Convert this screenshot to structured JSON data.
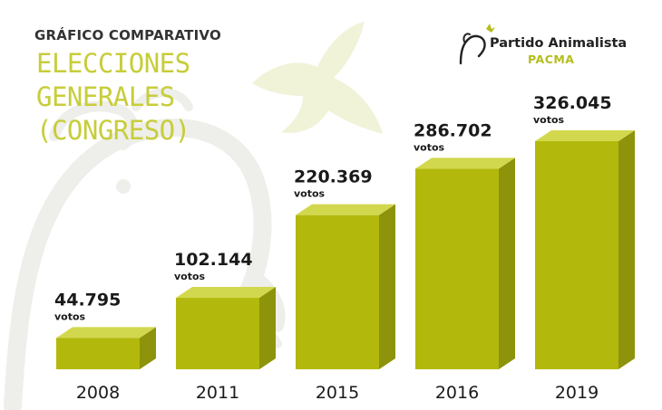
{
  "header": {
    "subtitle": "GRÁFICO COMPARATIVO",
    "title": "ELECCIONES GENERALES (CONGRESO)"
  },
  "logo": {
    "name": "Partido Animalista",
    "sub": "PACMA",
    "accent": "#b5bd1c"
  },
  "chart_data": {
    "type": "bar",
    "categories": [
      "2008",
      "2011",
      "2015",
      "2016",
      "2019"
    ],
    "values": [
      44795,
      102144,
      220369,
      286702,
      326045
    ],
    "value_labels": [
      "44.795",
      "102.144",
      "220.369",
      "286.702",
      "326.045"
    ],
    "unit_label": "votos",
    "title": "ELECCIONES GENERALES (CONGRESO)",
    "bar_colors": {
      "front": "#b2b90c",
      "top": "#d2d84d",
      "side": "#8d930a"
    },
    "grid": false,
    "legend": "none",
    "style": "3d"
  }
}
